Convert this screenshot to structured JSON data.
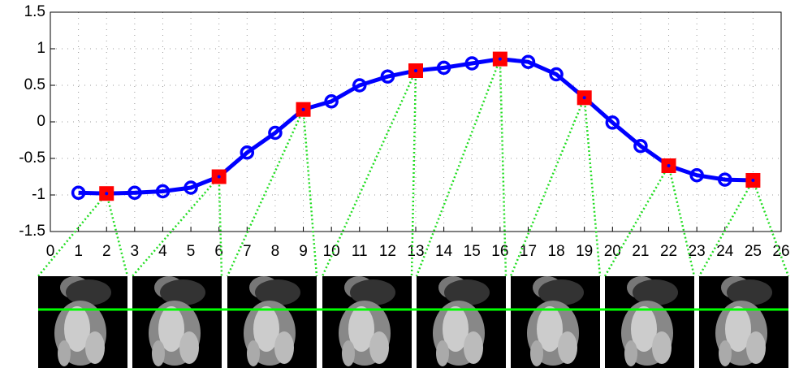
{
  "chart_data": {
    "type": "line",
    "x": [
      1,
      2,
      3,
      4,
      5,
      6,
      7,
      8,
      9,
      10,
      11,
      12,
      13,
      14,
      15,
      16,
      17,
      18,
      19,
      20,
      21,
      22,
      23,
      24,
      25
    ],
    "series": [
      {
        "color": "#0000ff",
        "values": [
          -0.97,
          -0.98,
          -0.97,
          -0.95,
          -0.9,
          -0.75,
          -0.42,
          -0.15,
          0.17,
          0.28,
          0.5,
          0.62,
          0.7,
          0.74,
          0.8,
          0.86,
          0.82,
          0.65,
          0.33,
          -0.01,
          -0.33,
          -0.6,
          -0.73,
          -0.79,
          -0.8
        ]
      },
      {
        "color": "#ff0000",
        "x": [
          2,
          6,
          9,
          13,
          16,
          19,
          22,
          25
        ],
        "values": [
          -0.98,
          -0.75,
          0.17,
          0.7,
          0.86,
          0.33,
          -0.6,
          -0.8
        ]
      }
    ],
    "xlim": [
      0,
      26
    ],
    "xticks": [
      0,
      1,
      2,
      3,
      4,
      5,
      6,
      7,
      8,
      9,
      10,
      11,
      12,
      13,
      14,
      15,
      16,
      17,
      18,
      19,
      20,
      21,
      22,
      23,
      24,
      25,
      26
    ],
    "ylim": [
      -1.5,
      1.5
    ],
    "yticks": [
      -1.5,
      -1,
      -0.5,
      0,
      0.5,
      1,
      1.5
    ],
    "grid": true
  }
}
